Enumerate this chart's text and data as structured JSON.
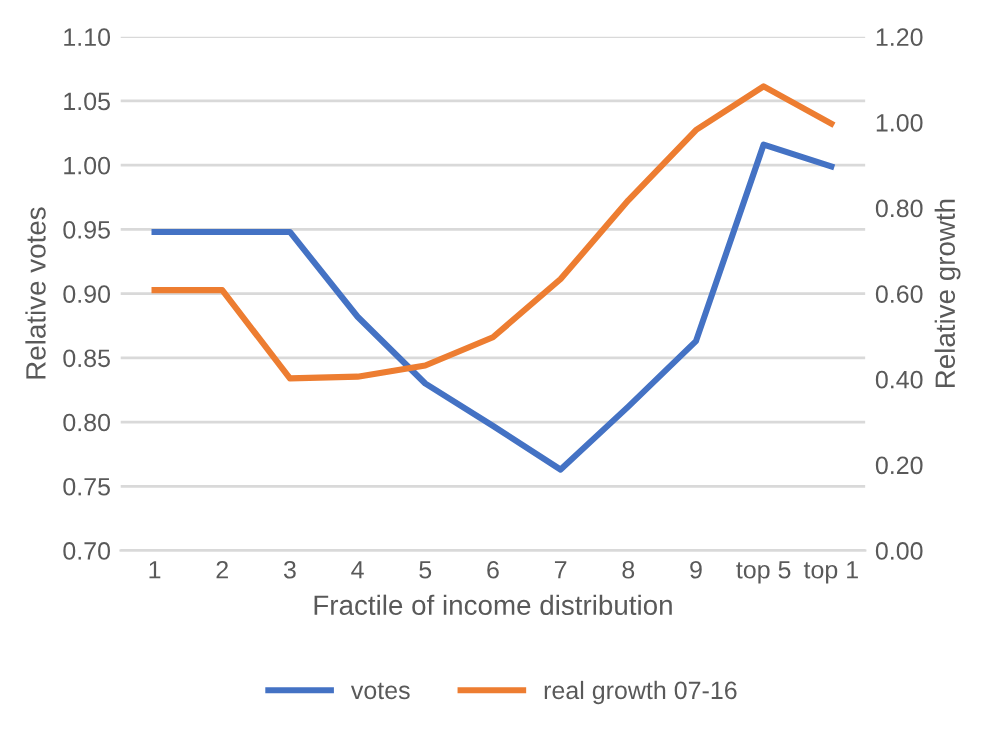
{
  "chart_data": {
    "type": "line",
    "xlabel": "Fractile of income distribution",
    "ylabel": "Relative votes",
    "y2label": "Relative growth",
    "categories": [
      "1",
      "2",
      "3",
      "4",
      "5",
      "6",
      "7",
      "8",
      "9",
      "top 5",
      "top 1"
    ],
    "series": [
      {
        "name": "votes",
        "color": "#4472c4",
        "values": [
          0.948,
          0.948,
          0.948,
          0.882,
          0.83,
          0.797,
          0.763,
          0.812,
          0.863,
          1.016,
          0.999
        ]
      },
      {
        "name": "real growth 07-16",
        "color": "#ed7d31",
        "axis": "y2",
        "values": [
          0.608,
          0.608,
          0.402,
          0.406,
          0.432,
          0.498,
          0.634,
          0.818,
          0.982,
          1.084,
          0.997
        ]
      }
    ],
    "ylim": [
      0.7,
      1.1
    ],
    "yticks": [
      {
        "value": 0.7,
        "label": "0.70"
      },
      {
        "value": 0.75,
        "label": "0.75"
      },
      {
        "value": 0.8,
        "label": "0.80"
      },
      {
        "value": 0.85,
        "label": "0.85"
      },
      {
        "value": 0.9,
        "label": "0.90"
      },
      {
        "value": 0.95,
        "label": "0.95"
      },
      {
        "value": 1.0,
        "label": "1.00"
      },
      {
        "value": 1.05,
        "label": "1.05"
      },
      {
        "value": 1.1,
        "label": "1.10"
      }
    ],
    "y2lim": [
      0,
      1.2
    ],
    "y2ticks": [
      {
        "value": 0,
        "label": "0.00"
      },
      {
        "value": 0.2,
        "label": "0.20"
      },
      {
        "value": 0.4,
        "label": "0.40"
      },
      {
        "value": 0.6,
        "label": "0.60"
      },
      {
        "value": 0.8,
        "label": "0.80"
      },
      {
        "value": 1.0,
        "label": "1.00"
      },
      {
        "value": 1.2,
        "label": "1.20"
      }
    ],
    "grid": "y",
    "legend": "bottom",
    "marker": "none",
    "line_style": "solid"
  }
}
